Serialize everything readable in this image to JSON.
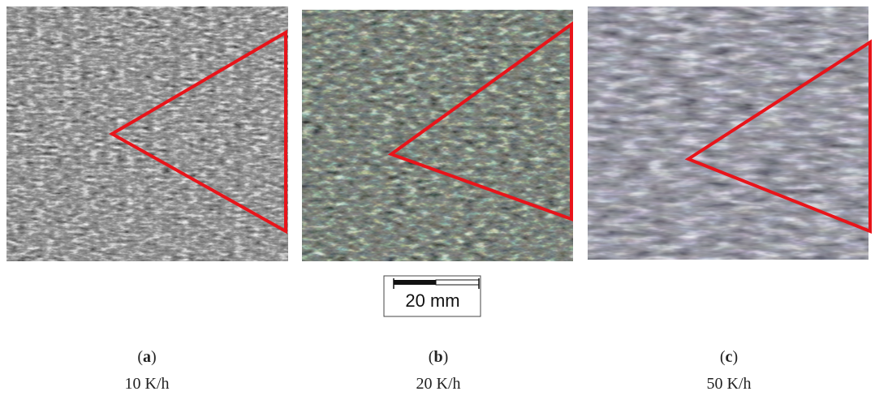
{
  "figure": {
    "panels": [
      {
        "label": "(a)",
        "caption": "10 K/h"
      },
      {
        "label": "(b)",
        "caption": "20 K/h"
      },
      {
        "label": "(c)",
        "caption": "50 K/h"
      }
    ],
    "scale_bar": {
      "label": "20 mm"
    }
  }
}
